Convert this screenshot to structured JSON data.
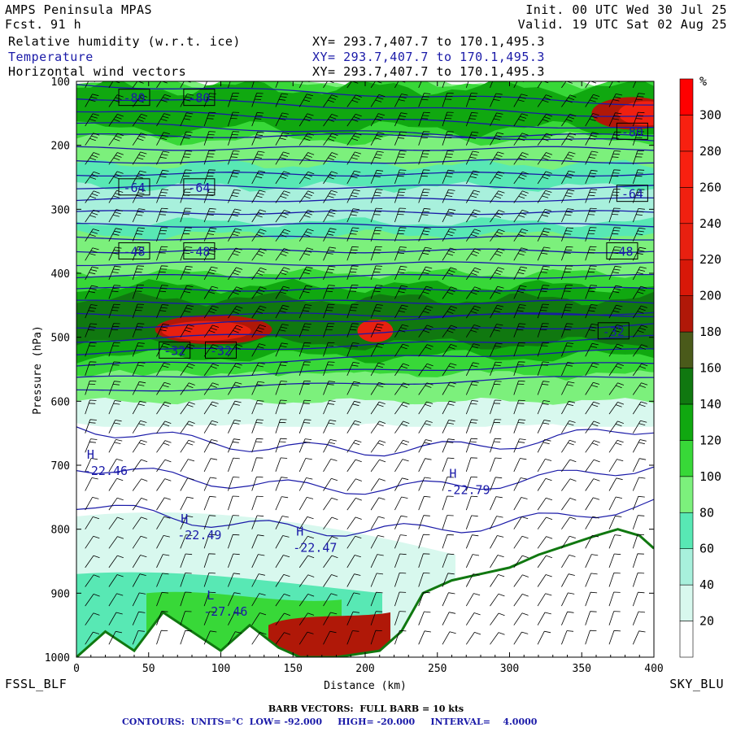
{
  "header": {
    "model": "AMPS Peninsula MPAS",
    "fcst_label": "Fcst.",
    "fcst_value": "91 h",
    "init": "Init. 00 UTC Wed 30 Jul 25",
    "valid": "Valid. 19 UTC Sat 02 Aug 25",
    "fields": [
      {
        "name": "Relative humidity (w.r.t. ice)",
        "xy": "XY= 293.7,407.7 to 170.1,495.3"
      },
      {
        "name": "Temperature",
        "xy": "XY= 293.7,407.7 to 170.1,495.3"
      },
      {
        "name": "Horizontal wind vectors",
        "xy": "XY= 293.7,407.7 to 170.1,495.3"
      }
    ]
  },
  "footer": {
    "left_station": "FSSL_BLF",
    "right_station": "SKY_BLU",
    "barb_note": "BARB VECTORS:  FULL BARB = 10 kts",
    "contour_note": "CONTOURS:  UNITS=°C  LOW= -92.000     HIGH= -20.000     INTERVAL=    4.0000"
  },
  "colors": {
    "temperature": "#1a1aa8",
    "rh_scale": [
      "#ffffff",
      "#d8f8ee",
      "#a8f0dc",
      "#58e8b4",
      "#7cf07c",
      "#38d838",
      "#10a810",
      "#107810",
      "#4a5a1a",
      "#b01808",
      "#d81808",
      "#e82010",
      "#f02010",
      "#f82010",
      "#f82010",
      "#ff0000"
    ]
  },
  "chart_data": {
    "type": "heatmap",
    "xlabel": "Distance (km)",
    "ylabel": "Pressure (hPa)",
    "x_ticks": [
      0,
      50,
      100,
      150,
      200,
      250,
      300,
      350,
      400
    ],
    "xlim": [
      0,
      400
    ],
    "y_ticks": [
      100,
      200,
      300,
      400,
      500,
      600,
      700,
      800,
      900,
      1000
    ],
    "ylim": [
      1000,
      100
    ],
    "colorbar": {
      "unit": "%",
      "ticks": [
        20,
        40,
        60,
        80,
        100,
        120,
        140,
        160,
        180,
        200,
        220,
        240,
        260,
        280,
        300
      ]
    },
    "temperature_labels": [
      {
        "text": "-80",
        "x": 40,
        "p": 125
      },
      {
        "text": "-80",
        "x": 85,
        "p": 125
      },
      {
        "text": "-80",
        "x": 385,
        "p": 178
      },
      {
        "text": "-64",
        "x": 40,
        "p": 265
      },
      {
        "text": "-64",
        "x": 85,
        "p": 265
      },
      {
        "text": "-64",
        "x": 385,
        "p": 275
      },
      {
        "text": "-48",
        "x": 40,
        "p": 365
      },
      {
        "text": "-48",
        "x": 85,
        "p": 365
      },
      {
        "text": "-48",
        "x": 378,
        "p": 365
      },
      {
        "text": "-32",
        "x": 68,
        "p": 520
      },
      {
        "text": "-32",
        "x": 100,
        "p": 520
      },
      {
        "text": "-32",
        "x": 372,
        "p": 490
      }
    ],
    "extrema": [
      {
        "kind": "H",
        "value": "-22.46",
        "x": 5,
        "p": 690
      },
      {
        "kind": "H",
        "value": "-22.49",
        "x": 70,
        "p": 790
      },
      {
        "kind": "H",
        "value": "-22.47",
        "x": 150,
        "p": 810
      },
      {
        "kind": "H",
        "value": "-22.79",
        "x": 256,
        "p": 720
      },
      {
        "kind": "L",
        "value": "-27.46",
        "x": 88,
        "p": 910
      }
    ]
  }
}
